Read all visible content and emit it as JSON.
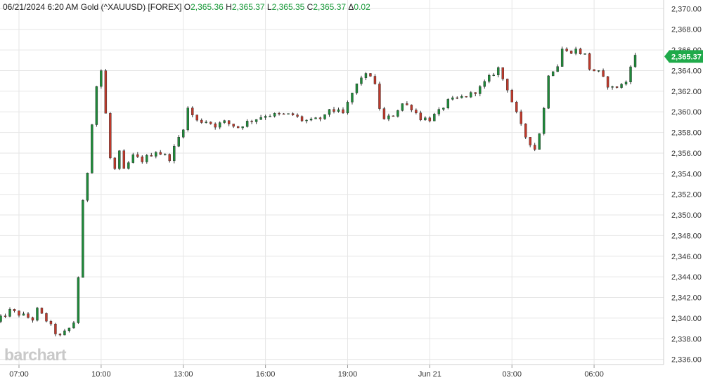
{
  "header": {
    "timestamp": "06/21/2024 6:20 AM",
    "symbol": "Gold (^XAUUSD) [FOREX]",
    "open_label": "O",
    "open": "2,365.36",
    "high_label": "H",
    "high": "2,365.37",
    "low_label": "L",
    "low": "2,365.35",
    "close_label": "C",
    "close": "2,365.37",
    "change_label": "Δ",
    "change": "0.02"
  },
  "watermark": "barchart",
  "colors": {
    "up": "#1f8a3a",
    "down": "#c0392b",
    "last_price_tag": "#1faa4a",
    "grid": "#e6e6e6",
    "axis_text": "#333333"
  },
  "chart_data": {
    "type": "candlestick",
    "ylim": [
      2335.5,
      2370.5
    ],
    "y_ticks": [
      "2,370.00",
      "2,368.00",
      "2,366.00",
      "2,364.00",
      "2,362.00",
      "2,360.00",
      "2,358.00",
      "2,356.00",
      "2,354.00",
      "2,352.00",
      "2,350.00",
      "2,348.00",
      "2,346.00",
      "2,344.00",
      "2,342.00",
      "2,340.00",
      "2,338.00",
      "2,336.00"
    ],
    "x_ticks": [
      "07:00",
      "10:00",
      "13:00",
      "16:00",
      "19:00",
      "Jun 21",
      "03:00",
      "06:00"
    ],
    "last_price": "2,365.37",
    "bar_interval_minutes": 10,
    "close_path": [
      [
        "06:10",
        2339.6
      ],
      [
        "06:40",
        2340.7
      ],
      [
        "07:00",
        2340.4
      ],
      [
        "07:30",
        2339.9
      ],
      [
        "07:40",
        2340.8
      ],
      [
        "08:00",
        2339.8
      ],
      [
        "08:20",
        2338.6
      ],
      [
        "08:30",
        2338.2
      ],
      [
        "08:50",
        2339.0
      ],
      [
        "09:00",
        2339.6
      ],
      [
        "09:10",
        2344.0
      ],
      [
        "09:20",
        2351.2
      ],
      [
        "09:30",
        2354.2
      ],
      [
        "09:40",
        2359.0
      ],
      [
        "09:50",
        2362.5
      ],
      [
        "10:00",
        2364.0
      ],
      [
        "10:10",
        2359.8
      ],
      [
        "10:20",
        2355.5
      ],
      [
        "10:30",
        2354.4
      ],
      [
        "10:40",
        2356.0
      ],
      [
        "10:50",
        2354.3
      ],
      [
        "11:10",
        2355.7
      ],
      [
        "11:30",
        2355.3
      ],
      [
        "12:00",
        2356.2
      ],
      [
        "12:30",
        2355.5
      ],
      [
        "12:40",
        2356.5
      ],
      [
        "13:00",
        2358.5
      ],
      [
        "13:10",
        2360.3
      ],
      [
        "13:30",
        2359.1
      ],
      [
        "13:50",
        2359.1
      ],
      [
        "14:10",
        2358.7
      ],
      [
        "14:30",
        2359.0
      ],
      [
        "15:00",
        2358.5
      ],
      [
        "15:20",
        2359.0
      ],
      [
        "16:00",
        2359.7
      ],
      [
        "17:00",
        2359.7
      ],
      [
        "17:20",
        2359.2
      ],
      [
        "17:40",
        2359.1
      ],
      [
        "18:10",
        2359.5
      ],
      [
        "18:20",
        2360.3
      ],
      [
        "18:50",
        2359.8
      ],
      [
        "19:10",
        2361.8
      ],
      [
        "19:30",
        2363.4
      ],
      [
        "19:50",
        2363.6
      ],
      [
        "20:00",
        2362.5
      ],
      [
        "20:10",
        2360.4
      ],
      [
        "20:20",
        2359.2
      ],
      [
        "20:40",
        2359.7
      ],
      [
        "21:00",
        2360.8
      ],
      [
        "21:20",
        2360.4
      ],
      [
        "21:40",
        2359.4
      ],
      [
        "22:00",
        2359.3
      ],
      [
        "22:20",
        2360.0
      ],
      [
        "22:40",
        2361.0
      ],
      [
        "23:10",
        2361.4
      ],
      [
        "23:30",
        2361.7
      ],
      [
        "23:50",
        2362.3
      ],
      [
        "00:10",
        2363.3
      ],
      [
        "00:30",
        2364.2
      ],
      [
        "00:40",
        2363.2
      ],
      [
        "00:50",
        2362.3
      ],
      [
        "01:00",
        2361.0
      ],
      [
        "01:20",
        2358.6
      ],
      [
        "01:30",
        2357.6
      ],
      [
        "01:50",
        2356.4
      ],
      [
        "02:00",
        2358.0
      ],
      [
        "02:10",
        2360.3
      ],
      [
        "02:20",
        2363.7
      ],
      [
        "02:40",
        2364.5
      ],
      [
        "02:50",
        2366.1
      ],
      [
        "03:00",
        2365.8
      ],
      [
        "03:20",
        2366.0
      ],
      [
        "03:40",
        2365.5
      ],
      [
        "03:50",
        2364.2
      ],
      [
        "04:10",
        2363.8
      ],
      [
        "04:30",
        2362.6
      ],
      [
        "04:40",
        2362.3
      ],
      [
        "05:00",
        2362.6
      ],
      [
        "05:10",
        2362.9
      ],
      [
        "05:20",
        2364.6
      ],
      [
        "05:30",
        2365.37
      ]
    ]
  }
}
